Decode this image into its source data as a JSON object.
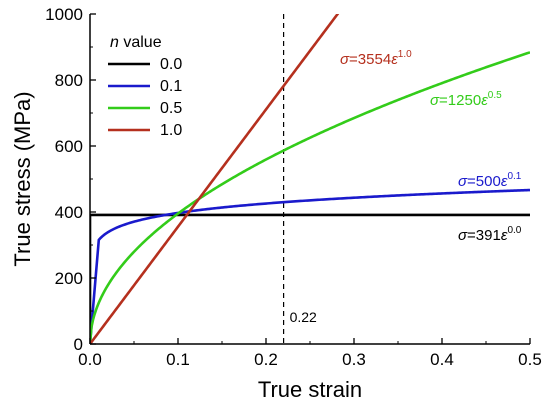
{
  "chart_data": {
    "type": "line",
    "xlabel": "True strain",
    "ylabel": "True stress (MPa)",
    "xlim": [
      0,
      0.5
    ],
    "ylim": [
      0,
      1000
    ],
    "xticks": [
      "0.0",
      "0.1",
      "0.2",
      "0.3",
      "0.4",
      "0.5"
    ],
    "yticks": [
      "0",
      "200",
      "400",
      "600",
      "800",
      "1000"
    ],
    "legend": {
      "title_italic": "n",
      "title_rest": " value",
      "placement": "top-left"
    },
    "series": [
      {
        "name": "0.0",
        "color": "#000000",
        "K": 391,
        "n": 0.0,
        "annotation": {
          "sigma": "σ",
          "eq": "=391",
          "eps": "ε",
          "exp": "0.0",
          "color": "#000000"
        }
      },
      {
        "name": "0.1",
        "color": "#1a1acc",
        "K": 500,
        "n": 0.1,
        "annotation": {
          "sigma": "σ",
          "eq": "=500",
          "eps": "ε",
          "exp": "0.1",
          "color": "#1a1acc"
        }
      },
      {
        "name": "0.5",
        "color": "#33cc1a",
        "K": 1250,
        "n": 0.5,
        "annotation": {
          "sigma": "σ",
          "eq": "=1250",
          "eps": "ε",
          "exp": "0.5",
          "color": "#33cc1a"
        }
      },
      {
        "name": "1.0",
        "color": "#b5301e",
        "K": 3554,
        "n": 1.0,
        "annotation": {
          "sigma": "σ",
          "eq": "=3554",
          "eps": "ε",
          "exp": "1.0",
          "color": "#b5301e"
        }
      }
    ],
    "vertical_line": {
      "x": 0.22,
      "label": "0.22"
    }
  }
}
